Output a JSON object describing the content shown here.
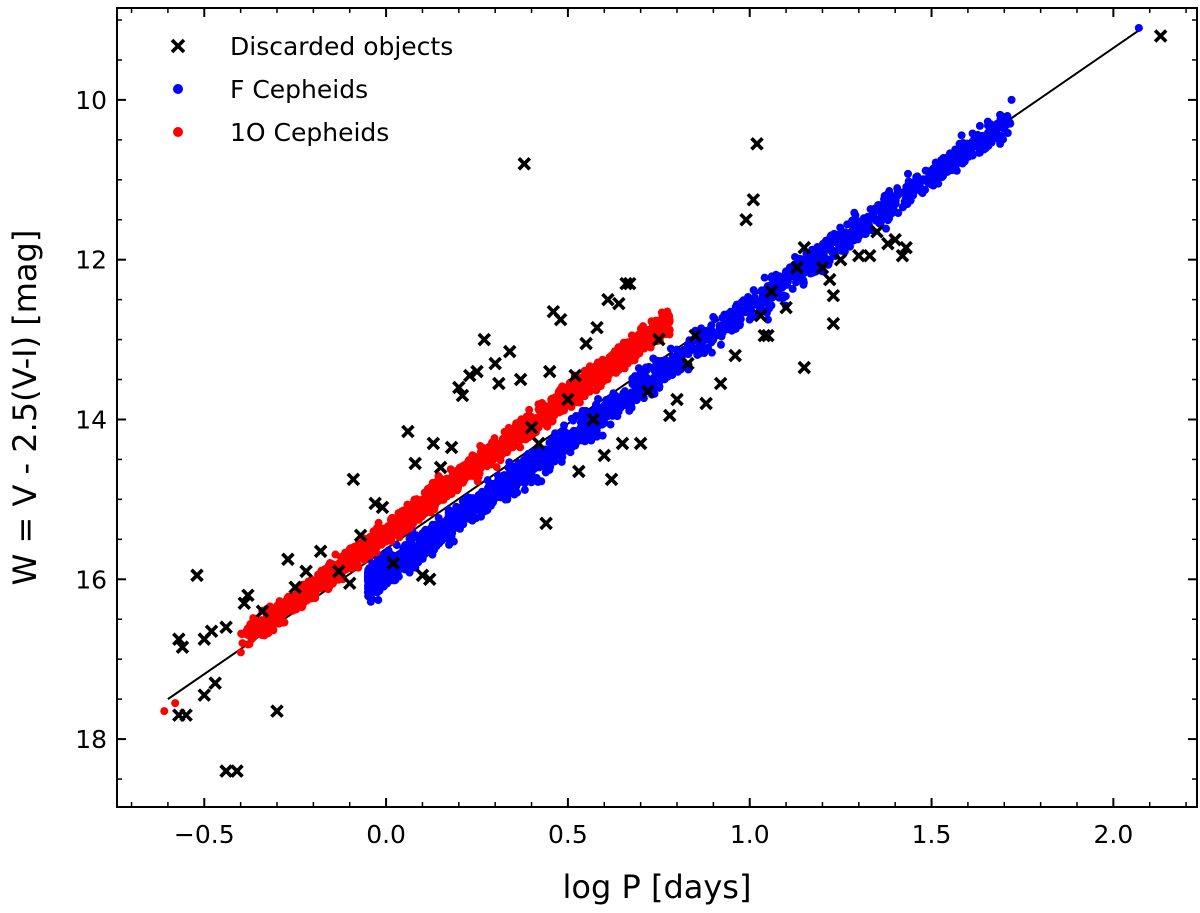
{
  "chart_data": {
    "type": "scatter",
    "title": "",
    "xlabel": "log  P [days]",
    "ylabel": "W = V - 2.5(V-I) [mag]",
    "xlim": [
      -0.74,
      2.23
    ],
    "ylim": [
      18.85,
      8.85
    ],
    "y_inverted": true,
    "xticks": [
      -0.5,
      0.0,
      0.5,
      1.0,
      1.5,
      2.0
    ],
    "xtick_labels": [
      "−0.5",
      "0.0",
      "0.5",
      "1.0",
      "1.5",
      "2.0"
    ],
    "yticks": [
      10,
      12,
      14,
      16,
      18
    ],
    "ytick_labels": [
      "10",
      "12",
      "14",
      "16",
      "18"
    ],
    "grid": false,
    "legend_position": "top-left",
    "series": [
      {
        "name": "Discarded objects",
        "marker": "x",
        "color": "#000000",
        "points": [
          [
            -0.57,
            16.75
          ],
          [
            -0.56,
            16.85
          ],
          [
            -0.57,
            17.7
          ],
          [
            -0.55,
            17.7
          ],
          [
            -0.52,
            15.95
          ],
          [
            -0.5,
            16.75
          ],
          [
            -0.48,
            16.65
          ],
          [
            -0.5,
            17.45
          ],
          [
            -0.47,
            17.3
          ],
          [
            -0.44,
            18.4
          ],
          [
            -0.41,
            18.4
          ],
          [
            -0.44,
            16.6
          ],
          [
            -0.39,
            16.3
          ],
          [
            -0.38,
            16.2
          ],
          [
            -0.34,
            16.4
          ],
          [
            -0.3,
            17.65
          ],
          [
            -0.27,
            15.75
          ],
          [
            -0.25,
            16.1
          ],
          [
            -0.22,
            15.9
          ],
          [
            -0.18,
            15.65
          ],
          [
            -0.13,
            15.9
          ],
          [
            -0.1,
            16.05
          ],
          [
            -0.09,
            14.75
          ],
          [
            -0.07,
            15.45
          ],
          [
            -0.03,
            15.05
          ],
          [
            -0.01,
            15.1
          ],
          [
            0.02,
            15.8
          ],
          [
            0.06,
            14.15
          ],
          [
            0.08,
            14.55
          ],
          [
            0.1,
            15.95
          ],
          [
            0.12,
            16.0
          ],
          [
            0.13,
            14.3
          ],
          [
            0.15,
            14.6
          ],
          [
            0.18,
            14.35
          ],
          [
            0.2,
            13.6
          ],
          [
            0.21,
            13.7
          ],
          [
            0.23,
            13.45
          ],
          [
            0.25,
            13.4
          ],
          [
            0.27,
            13.0
          ],
          [
            0.3,
            13.3
          ],
          [
            0.31,
            13.55
          ],
          [
            0.34,
            13.15
          ],
          [
            0.37,
            13.5
          ],
          [
            0.38,
            10.8
          ],
          [
            0.4,
            14.1
          ],
          [
            0.42,
            14.3
          ],
          [
            0.44,
            15.3
          ],
          [
            0.45,
            13.4
          ],
          [
            0.46,
            12.65
          ],
          [
            0.48,
            12.75
          ],
          [
            0.5,
            13.75
          ],
          [
            0.52,
            13.45
          ],
          [
            0.53,
            14.65
          ],
          [
            0.55,
            13.05
          ],
          [
            0.57,
            14.0
          ],
          [
            0.58,
            12.85
          ],
          [
            0.6,
            14.45
          ],
          [
            0.61,
            12.5
          ],
          [
            0.62,
            14.75
          ],
          [
            0.64,
            12.55
          ],
          [
            0.65,
            14.3
          ],
          [
            0.66,
            12.3
          ],
          [
            0.67,
            12.3
          ],
          [
            0.7,
            14.3
          ],
          [
            0.72,
            13.65
          ],
          [
            0.75,
            13.0
          ],
          [
            0.78,
            13.95
          ],
          [
            0.8,
            13.75
          ],
          [
            0.83,
            13.3
          ],
          [
            0.85,
            12.95
          ],
          [
            0.88,
            13.8
          ],
          [
            0.92,
            13.55
          ],
          [
            0.96,
            13.2
          ],
          [
            0.99,
            11.5
          ],
          [
            1.01,
            11.25
          ],
          [
            1.02,
            10.55
          ],
          [
            1.03,
            12.7
          ],
          [
            1.04,
            12.95
          ],
          [
            1.05,
            12.95
          ],
          [
            1.06,
            12.4
          ],
          [
            1.1,
            12.6
          ],
          [
            1.13,
            12.1
          ],
          [
            1.15,
            11.85
          ],
          [
            1.15,
            13.35
          ],
          [
            1.2,
            12.1
          ],
          [
            1.22,
            12.25
          ],
          [
            1.23,
            12.8
          ],
          [
            1.23,
            12.45
          ],
          [
            1.25,
            12.0
          ],
          [
            1.3,
            11.95
          ],
          [
            1.33,
            11.95
          ],
          [
            1.35,
            11.65
          ],
          [
            1.38,
            11.8
          ],
          [
            1.4,
            11.75
          ],
          [
            1.42,
            11.95
          ],
          [
            1.43,
            11.85
          ],
          [
            2.13,
            9.2
          ]
        ]
      },
      {
        "name": "F Cepheids",
        "marker": "dot",
        "color": "#0000ff",
        "relation": {
          "slope": -3.3,
          "intercept": 15.9,
          "scatter": 0.14,
          "xmin": -0.05,
          "xmax": 1.72,
          "count": 1700
        },
        "extra_points": [
          [
            2.07,
            9.1
          ],
          [
            1.72,
            10.0
          ],
          [
            1.68,
            10.3
          ],
          [
            1.64,
            10.45
          ],
          [
            1.05,
            12.75
          ],
          [
            -0.02,
            15.9
          ]
        ]
      },
      {
        "name": "1O Cepheids",
        "marker": "dot",
        "color": "#ff0000",
        "relation": {
          "slope": -3.4,
          "intercept": 15.42,
          "scatter": 0.11,
          "xmin": -0.61,
          "xmax": 0.78,
          "count": 1900
        },
        "extra_points": [
          [
            -0.61,
            17.65
          ],
          [
            0.77,
            12.75
          ],
          [
            -0.58,
            17.55
          ]
        ]
      }
    ],
    "fit_lines": [
      {
        "label": "",
        "color": "#000000",
        "x": [
          -0.6,
          2.08
        ],
        "y": [
          17.5,
          9.1
        ]
      },
      {
        "label": "",
        "color": "#000000",
        "x": [
          -0.05,
          0.78
        ],
        "y": [
          15.6,
          12.85
        ]
      }
    ]
  }
}
